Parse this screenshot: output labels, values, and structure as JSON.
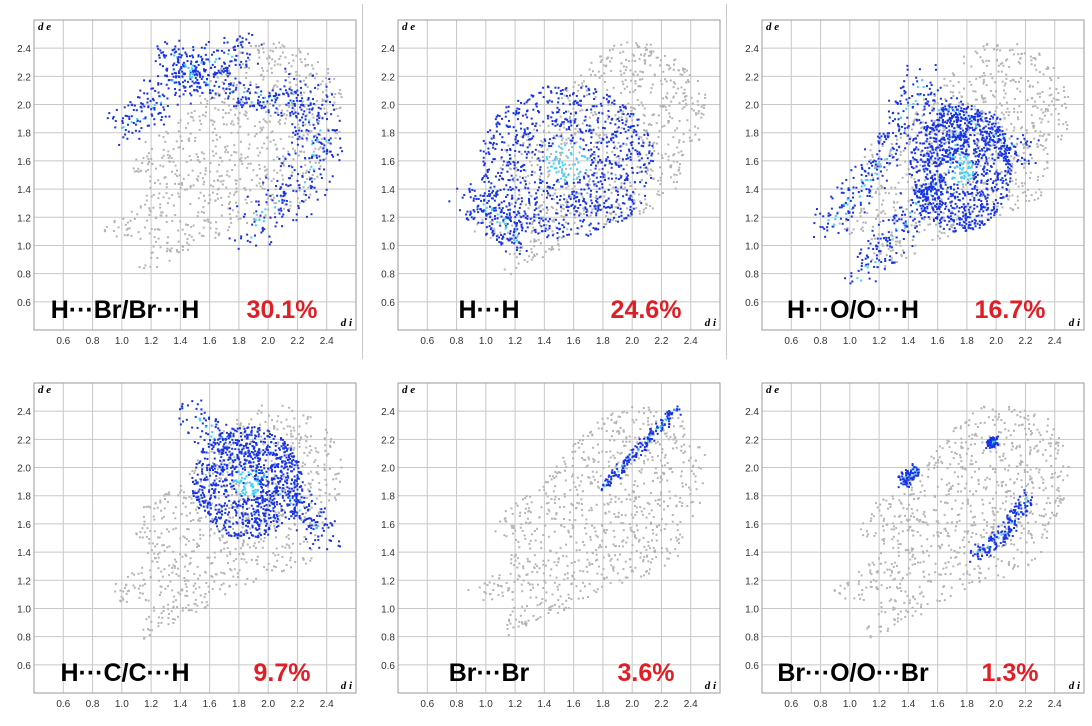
{
  "axes": {
    "xlabel": "d i",
    "ylabel": "d e",
    "x_ticks": [
      "0.6",
      "0.8",
      "1.0",
      "1.2",
      "1.4",
      "1.6",
      "1.8",
      "2.0",
      "2.2",
      "2.4"
    ],
    "y_ticks": [
      "0.6",
      "0.8",
      "1.0",
      "1.2",
      "1.4",
      "1.6",
      "1.8",
      "2.0",
      "2.2",
      "2.4"
    ],
    "xlim": [
      0.4,
      2.6
    ],
    "ylim": [
      0.4,
      2.6
    ]
  },
  "colors": {
    "background_cloud": "#b4b4b4",
    "contact_points": "#1633e6",
    "dense_points": "#3ad0ff",
    "percent_text": "#e01e26",
    "label_text": "#000000",
    "grid": "#c8c8c8"
  },
  "chart_data": [
    {
      "type": "scatter",
      "title": "H···Br/Br···H",
      "percent": "30.1%",
      "xlabel": "d i",
      "ylabel": "d e",
      "xlim": [
        0.4,
        2.6
      ],
      "ylim": [
        0.4,
        2.6
      ],
      "grid": true,
      "series": [
        {
          "kind": "band",
          "points": [
            [
              1.0,
              1.82
            ],
            [
              1.25,
              2.05
            ],
            [
              1.55,
              2.3
            ],
            [
              1.85,
              2.4
            ]
          ],
          "width": 0.12
        },
        {
          "kind": "band",
          "points": [
            [
              2.25,
              2.15
            ],
            [
              2.35,
              1.75
            ],
            [
              2.2,
              1.4
            ],
            [
              1.85,
              1.1
            ]
          ],
          "width": 0.16
        },
        {
          "kind": "band",
          "points": [
            [
              1.3,
              2.4
            ],
            [
              1.5,
              2.2
            ],
            [
              1.9,
              2.05
            ],
            [
              2.3,
              2.0
            ]
          ],
          "width": 0.1
        }
      ]
    },
    {
      "type": "scatter",
      "title": "H···H",
      "percent": "24.6%",
      "xlabel": "d i",
      "ylabel": "d e",
      "xlim": [
        0.4,
        2.6
      ],
      "ylim": [
        0.4,
        2.6
      ],
      "grid": true,
      "series": [
        {
          "kind": "blob",
          "center": [
            1.55,
            1.6
          ],
          "radius": [
            0.6,
            0.55
          ]
        },
        {
          "kind": "band",
          "points": [
            [
              0.85,
              1.35
            ],
            [
              1.1,
              1.2
            ],
            [
              1.2,
              1.05
            ]
          ],
          "width": 0.12
        }
      ]
    },
    {
      "type": "scatter",
      "title": "H···O/O···H",
      "percent": "16.7%",
      "xlabel": "d i",
      "ylabel": "d e",
      "xlim": [
        0.4,
        2.6
      ],
      "ylim": [
        0.4,
        2.6
      ],
      "grid": true,
      "series": [
        {
          "kind": "band",
          "points": [
            [
              0.85,
              1.13
            ],
            [
              1.1,
              1.45
            ],
            [
              1.35,
              1.85
            ],
            [
              1.5,
              2.2
            ]
          ],
          "width": 0.12
        },
        {
          "kind": "band",
          "points": [
            [
              1.05,
              0.78
            ],
            [
              1.35,
              1.15
            ],
            [
              1.6,
              1.5
            ],
            [
              1.75,
              1.9
            ]
          ],
          "width": 0.12
        },
        {
          "kind": "blob",
          "center": [
            1.75,
            1.55
          ],
          "radius": [
            0.35,
            0.45
          ]
        },
        {
          "kind": "band",
          "points": [
            [
              1.6,
              2.0
            ],
            [
              1.9,
              1.85
            ],
            [
              2.2,
              1.65
            ]
          ],
          "width": 0.1
        }
      ]
    },
    {
      "type": "scatter",
      "title": "H···C/C···H",
      "percent": "9.7%",
      "xlabel": "d i",
      "ylabel": "d e",
      "xlim": [
        0.4,
        2.6
      ],
      "ylim": [
        0.4,
        2.6
      ],
      "grid": true,
      "series": [
        {
          "kind": "blob",
          "center": [
            1.85,
            1.9
          ],
          "radius": [
            0.38,
            0.4
          ]
        },
        {
          "kind": "band",
          "points": [
            [
              1.45,
              2.4
            ],
            [
              1.8,
              2.1
            ],
            [
              2.2,
              1.75
            ],
            [
              2.4,
              1.5
            ]
          ],
          "width": 0.1
        }
      ]
    },
    {
      "type": "scatter",
      "title": "Br···Br",
      "percent": "3.6%",
      "xlabel": "d i",
      "ylabel": "d e",
      "xlim": [
        0.4,
        2.6
      ],
      "ylim": [
        0.4,
        2.6
      ],
      "grid": true,
      "series": [
        {
          "kind": "band",
          "points": [
            [
              1.8,
              1.87
            ],
            [
              2.05,
              2.15
            ],
            [
              2.3,
              2.42
            ]
          ],
          "width": 0.035
        }
      ]
    },
    {
      "type": "scatter",
      "title": "Br···O/O···Br",
      "percent": "1.3%",
      "xlabel": "d i",
      "ylabel": "d e",
      "xlim": [
        0.4,
        2.6
      ],
      "ylim": [
        0.4,
        2.6
      ],
      "grid": true,
      "series": [
        {
          "kind": "band",
          "points": [
            [
              1.35,
              1.9
            ],
            [
              1.45,
              2.0
            ]
          ],
          "width": 0.04
        },
        {
          "kind": "band",
          "points": [
            [
              1.85,
              1.38
            ],
            [
              2.05,
              1.55
            ],
            [
              2.22,
              1.8
            ]
          ],
          "width": 0.05
        },
        {
          "kind": "band",
          "points": [
            [
              1.95,
              2.17
            ],
            [
              1.98,
              2.2
            ]
          ],
          "width": 0.03
        }
      ]
    }
  ]
}
